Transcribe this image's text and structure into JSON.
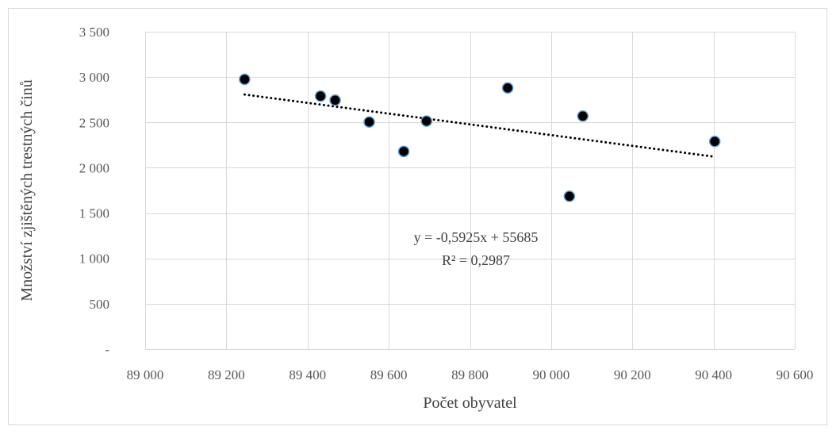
{
  "chart_data": {
    "type": "scatter",
    "xlabel": "Počet obyvatel",
    "ylabel": "Množství zjištěných trestných činů",
    "xlim": [
      89000,
      90600
    ],
    "ylim": [
      0,
      3500
    ],
    "x_ticks": [
      89000,
      89200,
      89400,
      89600,
      89800,
      90000,
      90200,
      90400,
      90600
    ],
    "x_tick_labels": [
      "89 000",
      "89 200",
      "89 400",
      "89 600",
      "89 800",
      "90 000",
      "90 200",
      "90 400",
      "90 600"
    ],
    "y_ticks": [
      0,
      500,
      1000,
      1500,
      2000,
      2500,
      3000,
      3500
    ],
    "y_tick_labels": [
      "-",
      "500",
      "1 000",
      "1 500",
      "2 000",
      "2 500",
      "3 000",
      "3 500"
    ],
    "grid": true,
    "points": [
      {
        "x": 89245,
        "y": 2975
      },
      {
        "x": 89432,
        "y": 2790
      },
      {
        "x": 89468,
        "y": 2745
      },
      {
        "x": 89552,
        "y": 2505
      },
      {
        "x": 89637,
        "y": 2180
      },
      {
        "x": 89693,
        "y": 2515
      },
      {
        "x": 89893,
        "y": 2880
      },
      {
        "x": 90045,
        "y": 1685
      },
      {
        "x": 90078,
        "y": 2570
      },
      {
        "x": 90403,
        "y": 2290
      }
    ],
    "trendline": {
      "type": "linear",
      "slope": -0.5925,
      "intercept": 55685,
      "x_range": [
        89245,
        90403
      ],
      "equation_label": "y = -0,5925x + 55685",
      "r2_label": "R² = 0,2987"
    },
    "colors": {
      "marker_fill": "#000000",
      "marker_stroke": "#5b9bd5",
      "grid": "#d9d9d9",
      "trendline": "#000000",
      "frame": "#d9d9d9"
    }
  }
}
